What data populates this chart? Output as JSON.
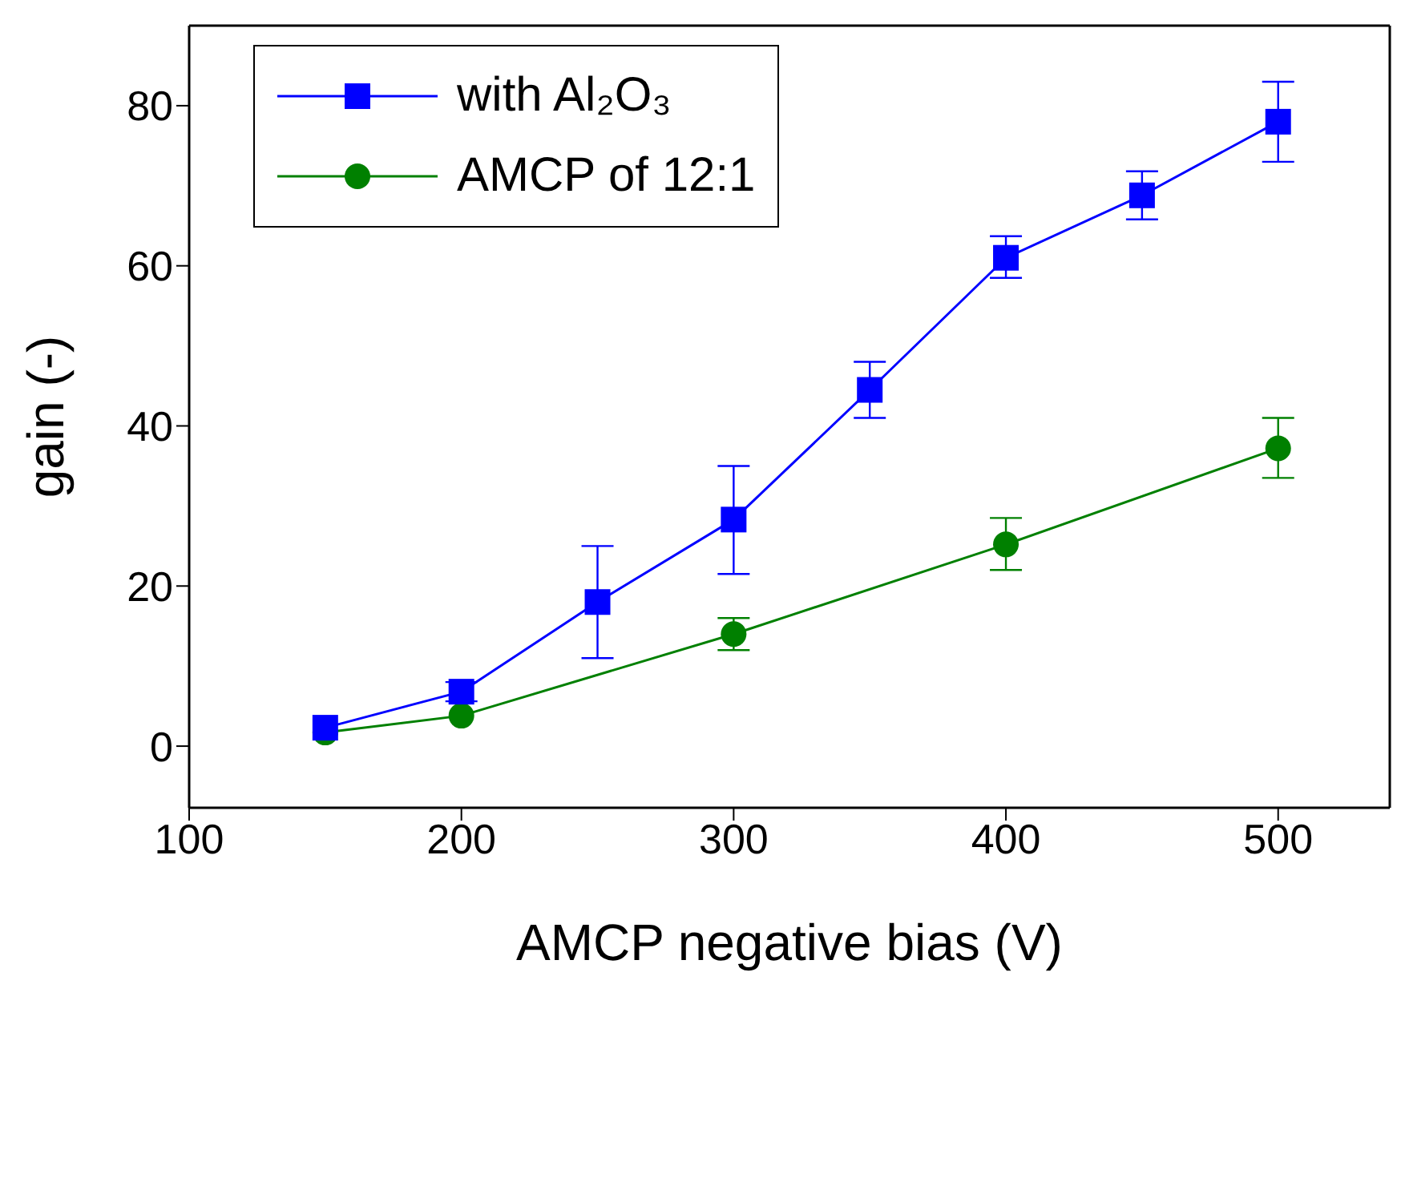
{
  "chart_data": {
    "type": "line",
    "xlabel": "AMCP negative bias (V)",
    "ylabel": "gain (-)",
    "xlim": [
      100,
      541
    ],
    "xticks": [
      100,
      200,
      300,
      400,
      500
    ],
    "ylim": [
      -7.7,
      90
    ],
    "yticks": [
      0,
      20,
      40,
      60,
      80
    ],
    "legend": "top left",
    "line_style": "solid",
    "series": [
      {
        "name": "with Al₂O₃",
        "color": "#0000ff",
        "marker": "square",
        "x": [
          150,
          200,
          250,
          300,
          350,
          400,
          450,
          500
        ],
        "values": [
          2.3,
          6.8,
          18,
          28.3,
          44.5,
          61,
          68.8,
          78
        ],
        "errors": [
          null,
          [
            5.6,
            8.0
          ],
          [
            11,
            25
          ],
          [
            21.5,
            35
          ],
          [
            41,
            48
          ],
          [
            58.5,
            63.7
          ],
          [
            65.8,
            71.8
          ],
          [
            73,
            83
          ]
        ]
      },
      {
        "name": "AMCP of 12:1",
        "color": "#008000",
        "marker": "circle",
        "x": [
          150,
          200,
          300,
          400,
          500
        ],
        "values": [
          1.7,
          3.8,
          14,
          25.2,
          37.2
        ],
        "errors": [
          null,
          null,
          [
            12,
            16
          ],
          [
            22,
            28.5
          ],
          [
            33.5,
            41
          ]
        ]
      }
    ]
  }
}
